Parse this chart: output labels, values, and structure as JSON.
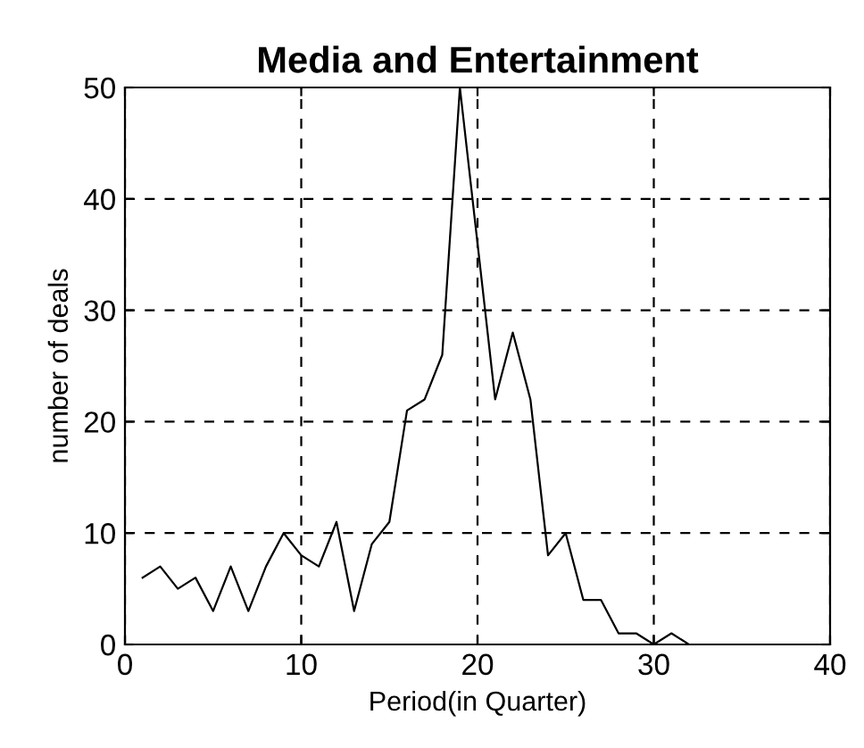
{
  "chart_data": {
    "type": "line",
    "title": "Media and Entertainment",
    "xlabel": "Period(in Quarter)",
    "ylabel": "number of deals",
    "x": [
      1,
      2,
      3,
      4,
      5,
      6,
      7,
      8,
      9,
      10,
      11,
      12,
      13,
      14,
      15,
      16,
      17,
      18,
      19,
      20,
      21,
      22,
      23,
      24,
      25,
      26,
      27,
      28,
      29,
      30,
      31,
      32
    ],
    "series": [
      {
        "color": "#000000",
        "values": [
          6,
          7,
          5,
          6,
          3,
          7,
          3,
          7,
          10,
          8,
          7,
          11,
          3,
          9,
          11,
          21,
          22,
          26,
          50,
          36,
          22,
          28,
          22,
          8,
          10,
          4,
          4,
          1,
          1,
          0,
          1,
          0
        ]
      }
    ],
    "xlim": [
      0,
      40
    ],
    "xticks": [
      0,
      10,
      20,
      30,
      40
    ],
    "ylim": [
      0,
      50
    ],
    "yticks": [
      0,
      10,
      20,
      30,
      40,
      50
    ],
    "grid": true,
    "marker": "none",
    "line_style": "solid"
  }
}
